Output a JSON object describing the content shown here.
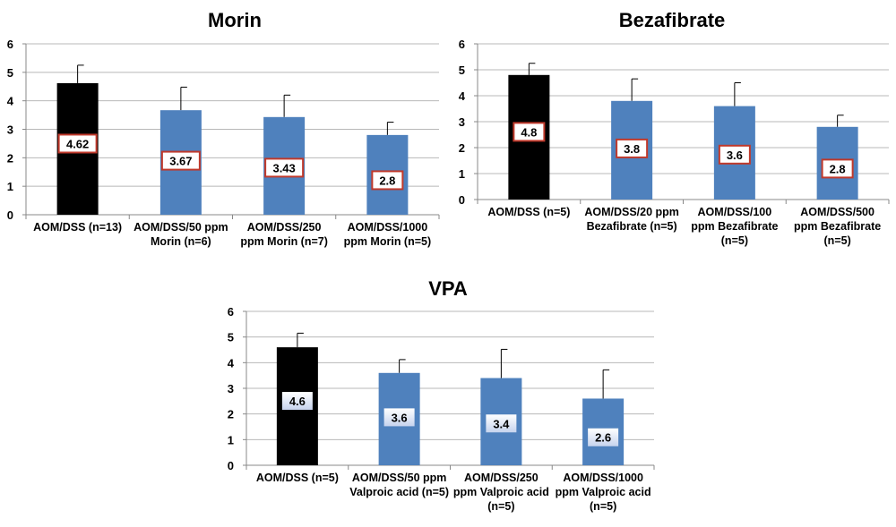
{
  "chart_data": [
    {
      "type": "bar",
      "title": "Morin",
      "categories": [
        [
          "AOM/DSS (n=13)"
        ],
        [
          "AOM/DSS/50 ppm",
          "Morin (n=6)"
        ],
        [
          "AOM/DSS/250",
          "ppm Morin (n=7)"
        ],
        [
          "AOM/DSS/1000",
          "ppm Morin (n=5)"
        ]
      ],
      "values": [
        4.62,
        3.67,
        3.43,
        2.8
      ],
      "data_labels": [
        "4.62",
        "3.67",
        "3.43",
        "2.8"
      ],
      "error_upper": [
        5.25,
        4.48,
        4.2,
        3.25
      ],
      "ylim": [
        0,
        6
      ],
      "yticks": [
        "0",
        "1",
        "2",
        "3",
        "4",
        "5",
        "6"
      ],
      "bar_colors": [
        "#000000",
        "#4f81bd",
        "#4f81bd",
        "#4f81bd"
      ],
      "label_style": "red-box",
      "grid": true
    },
    {
      "type": "bar",
      "title": "Bezafibrate",
      "categories": [
        [
          "AOM/DSS (n=5)"
        ],
        [
          "AOM/DSS/20 ppm",
          "Bezafibrate (n=5)"
        ],
        [
          "AOM/DSS/100",
          "ppm Bezafibrate",
          "(n=5)"
        ],
        [
          "AOM/DSS/500",
          "ppm Bezafibrate",
          "(n=5)"
        ]
      ],
      "values": [
        4.8,
        3.8,
        3.6,
        2.8
      ],
      "data_labels": [
        "4.8",
        "3.8",
        "3.6",
        "2.8"
      ],
      "error_upper": [
        5.25,
        4.65,
        4.5,
        3.25
      ],
      "ylim": [
        0,
        6
      ],
      "yticks": [
        "0",
        "1",
        "2",
        "3",
        "4",
        "5",
        "6"
      ],
      "bar_colors": [
        "#000000",
        "#4f81bd",
        "#4f81bd",
        "#4f81bd"
      ],
      "label_style": "red-box",
      "grid": true
    },
    {
      "type": "bar",
      "title": "VPA",
      "categories": [
        [
          "AOM/DSS (n=5)"
        ],
        [
          "AOM/DSS/50 ppm",
          "Valproic acid (n=5)"
        ],
        [
          "AOM/DSS/250",
          "ppm Valproic acid",
          "(n=5)"
        ],
        [
          "AOM/DSS/1000",
          "ppm Valproic acid",
          "(n=5)"
        ]
      ],
      "values": [
        4.6,
        3.6,
        3.4,
        2.6
      ],
      "data_labels": [
        "4.6",
        "3.6",
        "3.4",
        "2.6"
      ],
      "error_upper": [
        5.15,
        4.12,
        4.52,
        3.72
      ],
      "ylim": [
        0,
        6
      ],
      "yticks": [
        "0",
        "1",
        "2",
        "3",
        "4",
        "5",
        "6"
      ],
      "bar_colors": [
        "#000000",
        "#4f81bd",
        "#4f81bd",
        "#4f81bd"
      ],
      "label_style": "blue-box",
      "grid": true
    }
  ]
}
